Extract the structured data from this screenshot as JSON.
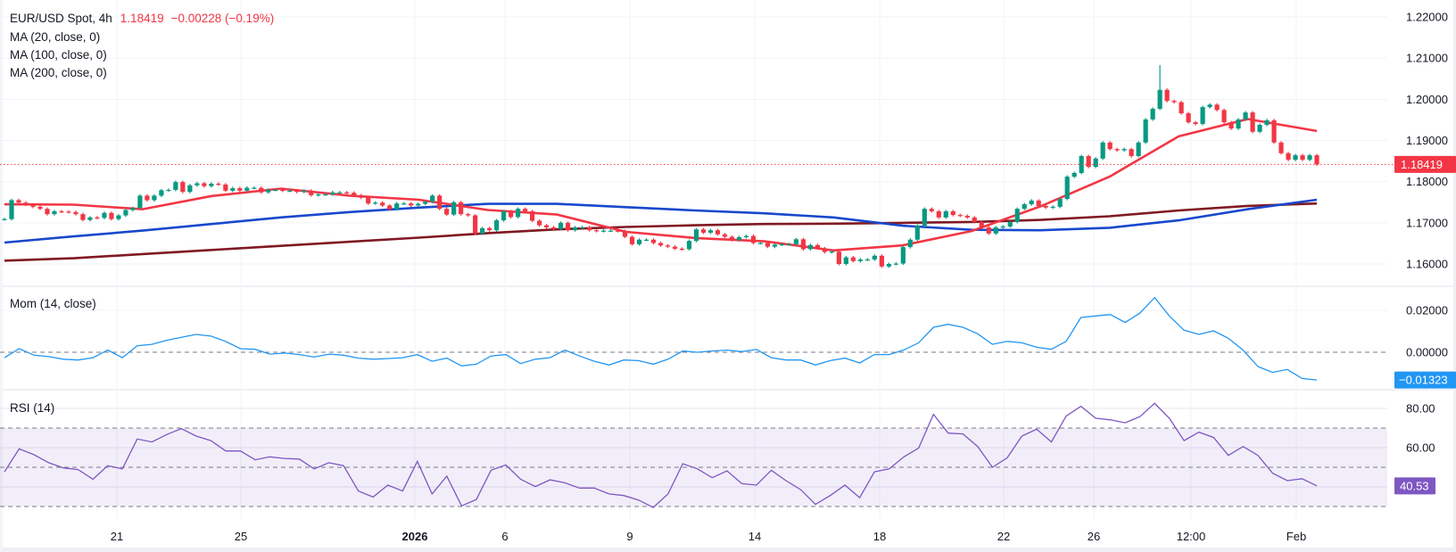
{
  "header": {
    "symbol": "EUR/USD Spot, 4h",
    "last": "1.18419",
    "change": "−0.00228 (−0.19%)"
  },
  "legend": {
    "ma20": "MA (20, close, 0)",
    "ma100": "MA (100, close, 0)",
    "ma200": "MA (200, close, 0)"
  },
  "panes": {
    "momentum": {
      "label": "Mom (14, close)",
      "last_label": "−0.01323"
    },
    "rsi": {
      "label": "RSI (14)",
      "last_label": "40.53"
    }
  },
  "price_axis": {
    "ticks": [
      "1.22000",
      "1.21000",
      "1.20000",
      "1.19000",
      "1.18000",
      "1.17000",
      "1.16000"
    ],
    "last_label": "1.18419"
  },
  "mom_axis": {
    "ticks": [
      "0.02000",
      "0.00000"
    ]
  },
  "rsi_axis": {
    "ticks": [
      "80.00",
      "60.00"
    ],
    "band": [
      30,
      70
    ],
    "midline": 50
  },
  "time_axis": {
    "labels": [
      "21",
      "25",
      "2026",
      "6",
      "9",
      "14",
      "18",
      "22",
      "26",
      "12:00",
      "Feb"
    ],
    "bold": [
      "2026"
    ]
  },
  "colors": {
    "up": "#089981",
    "down": "#f23645",
    "ma20": "#f23645",
    "ma100": "#1848cc",
    "ma200": "#801922",
    "momentum": "#2196f3",
    "rsi": "#7e57c2",
    "rsi_band": "#7e57c2",
    "grid": "#f0f3fa",
    "dashed": "#787b86"
  },
  "chart_data": [
    {
      "type": "candlestick",
      "title": "EUR/USD Spot, 4h",
      "ylim": [
        1.16,
        1.22
      ],
      "last": 1.18419,
      "close": [
        1.1709,
        1.1755,
        1.1749,
        1.1744,
        1.1739,
        1.1734,
        1.1721,
        1.1728,
        1.1727,
        1.1726,
        1.1721,
        1.1707,
        1.1713,
        1.1712,
        1.1724,
        1.1709,
        1.1718,
        1.1731,
        1.1736,
        1.1766,
        1.1755,
        1.1766,
        1.1779,
        1.178,
        1.1799,
        1.1775,
        1.1791,
        1.1796,
        1.1789,
        1.1795,
        1.1793,
        1.1778,
        1.1784,
        1.1778,
        1.1785,
        1.1785,
        1.1774,
        1.178,
        1.178,
        1.1778,
        1.1778,
        1.1775,
        1.1778,
        1.1767,
        1.1769,
        1.1769,
        1.1774,
        1.1774,
        1.1773,
        1.1767,
        1.1761,
        1.1747,
        1.1749,
        1.1742,
        1.1733,
        1.1747,
        1.1747,
        1.1742,
        1.1746,
        1.1751,
        1.1766,
        1.1734,
        1.172,
        1.175,
        1.1721,
        1.1718,
        1.1674,
        1.1687,
        1.1682,
        1.1706,
        1.1728,
        1.1714,
        1.1734,
        1.1728,
        1.1705,
        1.1694,
        1.1689,
        1.1685,
        1.17,
        1.1682,
        1.1689,
        1.1689,
        1.1682,
        1.168,
        1.1681,
        1.1681,
        1.168,
        1.1666,
        1.1648,
        1.1659,
        1.1659,
        1.1651,
        1.1645,
        1.1642,
        1.1637,
        1.1636,
        1.1656,
        1.1684,
        1.1676,
        1.1682,
        1.1672,
        1.1666,
        1.1658,
        1.1665,
        1.1668,
        1.1651,
        1.1651,
        1.1642,
        1.1647,
        1.1648,
        1.1648,
        1.166,
        1.1636,
        1.1646,
        1.1638,
        1.1629,
        1.163,
        1.16,
        1.1616,
        1.1607,
        1.1611,
        1.1611,
        1.162,
        1.1594,
        1.16,
        1.1601,
        1.1641,
        1.1659,
        1.1693,
        1.1734,
        1.1728,
        1.1713,
        1.1728,
        1.1719,
        1.1717,
        1.1713,
        1.1702,
        1.1689,
        1.1674,
        1.1689,
        1.1691,
        1.1702,
        1.1734,
        1.1745,
        1.1754,
        1.1741,
        1.1737,
        1.1739,
        1.1758,
        1.1812,
        1.1821,
        1.1862,
        1.1836,
        1.1856,
        1.1895,
        1.1879,
        1.1876,
        1.1879,
        1.1862,
        1.1895,
        1.1951,
        1.1977,
        1.2023,
        1.1996,
        1.1993,
        1.1966,
        1.1944,
        1.194,
        1.1981,
        1.1987,
        1.1974,
        1.1944,
        1.1929,
        1.1951,
        1.1968,
        1.1921,
        1.1938,
        1.1949,
        1.1895,
        1.1869,
        1.1853,
        1.1864,
        1.1853,
        1.1864,
        1.18419
      ],
      "wick_highs": [
        {
          "candle": 162,
          "high": 1.2083
        }
      ],
      "series": [
        {
          "name": "MA (20, close, 0)",
          "values": [
            1.1745,
            1.1744,
            1.1733,
            1.1765,
            1.1783,
            1.1766,
            1.1756,
            1.1731,
            1.172,
            1.1678,
            1.1663,
            1.1655,
            1.1633,
            1.1645,
            1.168,
            1.174,
            1.1812,
            1.191,
            1.1952,
            1.1923
          ]
        },
        {
          "name": "MA (100, close, 0)",
          "values": [
            1.1652,
            1.1667,
            1.1681,
            1.1697,
            1.1713,
            1.1726,
            1.1737,
            1.1746,
            1.1746,
            1.1738,
            1.173,
            1.1723,
            1.1713,
            1.1693,
            1.1683,
            1.1682,
            1.1688,
            1.1706,
            1.1733,
            1.1756
          ]
        },
        {
          "name": "MA (200, close, 0)",
          "values": [
            1.1608,
            1.1614,
            1.1624,
            1.1634,
            1.1644,
            1.1654,
            1.1664,
            1.1675,
            1.1684,
            1.169,
            1.1694,
            1.1697,
            1.1698,
            1.17,
            1.1702,
            1.1707,
            1.1716,
            1.173,
            1.1741,
            1.1747
          ]
        }
      ]
    },
    {
      "type": "line",
      "title": "Mom (14, close)",
      "ylim": [
        -0.016,
        0.03
      ],
      "zero_line": 0,
      "values": [
        -0.0026,
        0.0017,
        -0.0014,
        -0.0021,
        -0.0033,
        -0.0037,
        -0.0026,
        0.001,
        -0.0026,
        0.0031,
        0.0038,
        0.0057,
        0.0071,
        0.0085,
        0.0077,
        0.0052,
        0.0017,
        0.0014,
        -0.0009,
        -0.0004,
        -0.0011,
        -0.0023,
        -0.0009,
        -0.0014,
        -0.0028,
        -0.0033,
        -0.003,
        -0.0026,
        -0.0011,
        -0.0043,
        -0.0028,
        -0.0065,
        -0.0057,
        -0.0018,
        -0.0011,
        -0.0054,
        -0.0033,
        -0.0026,
        0.001,
        -0.0018,
        -0.0043,
        -0.0061,
        -0.0037,
        -0.004,
        -0.0057,
        -0.0033,
        0.0006,
        0.0,
        0.0006,
        0.001,
        0.0003,
        0.0013,
        -0.0026,
        -0.0037,
        -0.0037,
        -0.0061,
        -0.004,
        -0.0028,
        -0.0051,
        -0.0011,
        -0.0011,
        0.0011,
        0.0045,
        0.0119,
        0.0133,
        0.0119,
        0.0088,
        0.0038,
        0.0052,
        0.0045,
        0.0024,
        0.0014,
        0.0052,
        0.0166,
        0.0173,
        0.018,
        0.0142,
        0.0187,
        0.0261,
        0.0173,
        0.0105,
        0.0085,
        0.0102,
        0.0067,
        0.001,
        -0.0068,
        -0.0096,
        -0.0082,
        -0.0125,
        -0.01323
      ]
    },
    {
      "type": "line",
      "title": "RSI (14)",
      "ylim": [
        20,
        90
      ],
      "values": [
        47.7,
        59.4,
        56.4,
        52.3,
        49.7,
        48.8,
        43.9,
        50.8,
        49.2,
        64.4,
        62.9,
        66.7,
        69.7,
        65.9,
        63.6,
        58.3,
        58.3,
        53.8,
        55.3,
        54.5,
        54.2,
        49.2,
        52.3,
        50.8,
        37.9,
        34.8,
        40.9,
        37.9,
        53.0,
        36.4,
        45.5,
        30.3,
        33.6,
        48.5,
        51.2,
        43.9,
        40.2,
        43.6,
        42.1,
        39.4,
        39.4,
        36.4,
        35.6,
        33.3,
        29.5,
        36.4,
        51.8,
        49.2,
        44.7,
        48.2,
        41.7,
        40.9,
        48.5,
        43.2,
        38.6,
        31.1,
        35.6,
        40.9,
        34.5,
        47.7,
        49.2,
        55.3,
        59.8,
        77.0,
        67.4,
        67.0,
        60.6,
        50.0,
        54.8,
        65.9,
        69.4,
        62.9,
        76.1,
        81.1,
        75.0,
        74.2,
        72.7,
        75.8,
        82.6,
        75.0,
        63.6,
        67.9,
        65.2,
        56.1,
        60.6,
        56.1,
        47.0,
        43.2,
        44.2,
        40.53
      ]
    }
  ]
}
